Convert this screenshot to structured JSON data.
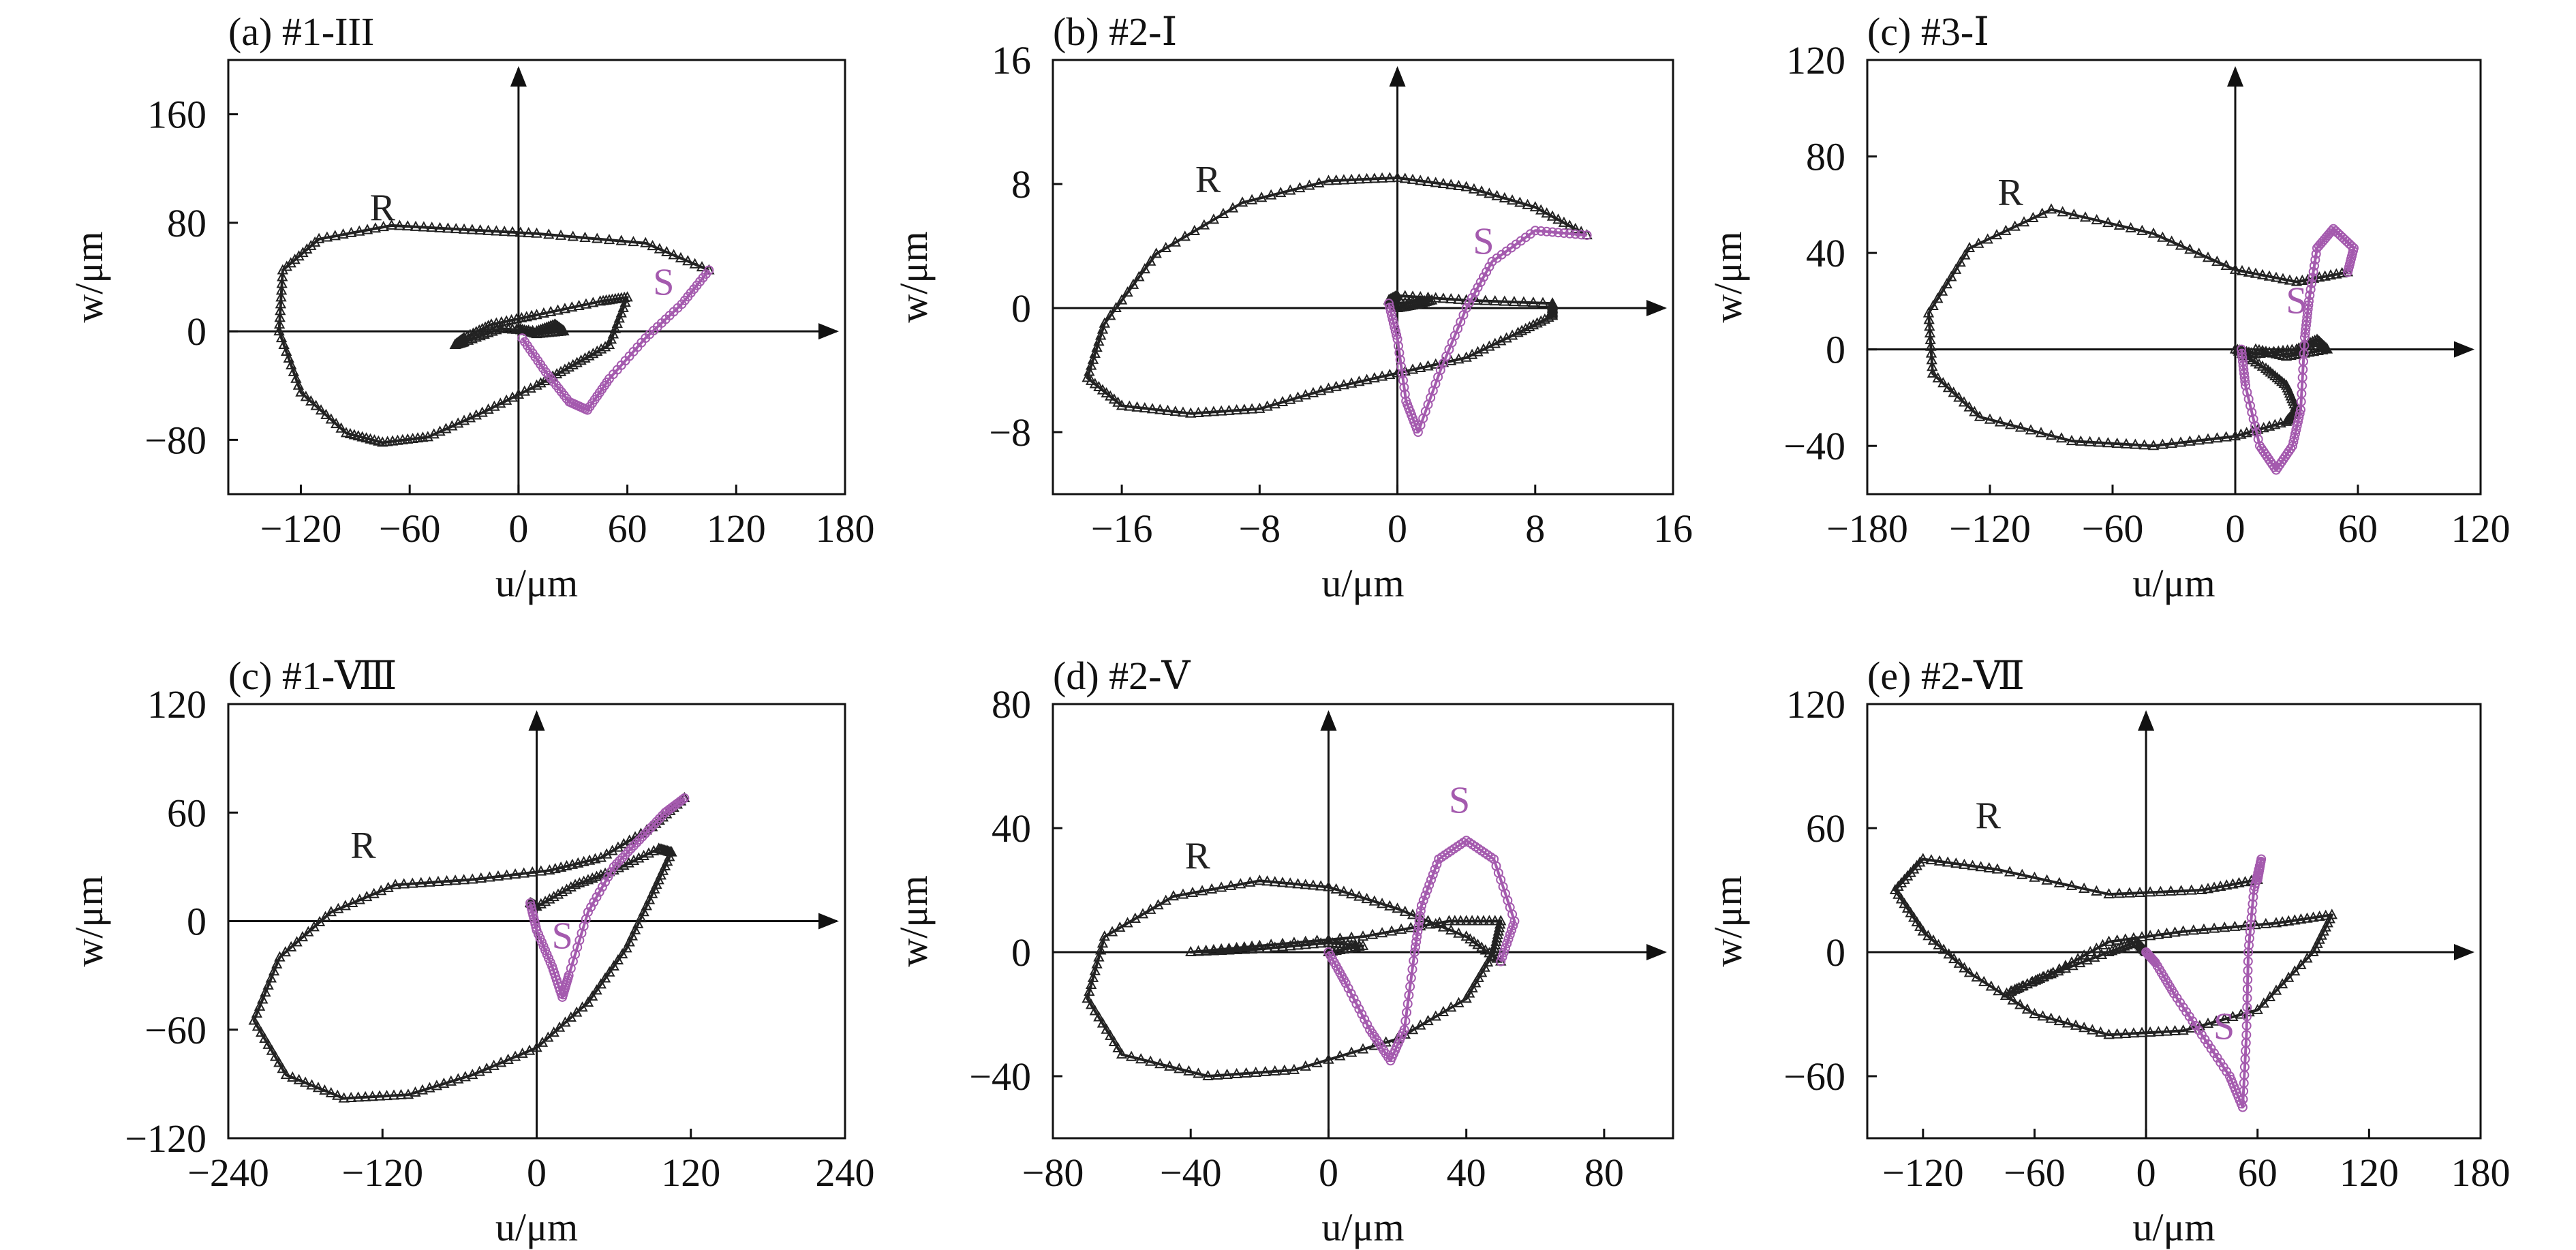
{
  "colors": {
    "R": "#222222",
    "S": "#a45aae",
    "axis": "#111111"
  },
  "chart_data": [
    {
      "type": "line",
      "panel": "(a) #1-III",
      "title": "(a) #1-III",
      "xlabel": "u/μm",
      "ylabel": "w/μm",
      "xlim": [
        -160,
        180
      ],
      "ylim": [
        -120,
        200
      ],
      "xticks": [
        -120,
        -60,
        0,
        60,
        120,
        180
      ],
      "yticks": [
        -80,
        0,
        80,
        160
      ],
      "xtick_labels": [
        "−120",
        "−60",
        "0",
        "60",
        "120",
        "180"
      ],
      "ytick_labels": [
        "−80",
        "0",
        "80",
        "160"
      ],
      "series": [
        {
          "name": "R",
          "label_at": [
            -75,
            82
          ],
          "points": [
            [
              105,
              45
            ],
            [
              70,
              65
            ],
            [
              10,
              72
            ],
            [
              -30,
              75
            ],
            [
              -70,
              78
            ],
            [
              -110,
              68
            ],
            [
              -130,
              45
            ],
            [
              -132,
              0
            ],
            [
              -120,
              -45
            ],
            [
              -95,
              -75
            ],
            [
              -75,
              -82
            ],
            [
              -50,
              -78
            ],
            [
              -20,
              -60
            ],
            [
              10,
              -40
            ],
            [
              30,
              -25
            ],
            [
              50,
              -10
            ],
            [
              60,
              25
            ],
            [
              45,
              22
            ],
            [
              10,
              12
            ],
            [
              -15,
              5
            ],
            [
              -30,
              -5
            ],
            [
              -35,
              -10
            ],
            [
              -30,
              -8
            ],
            [
              -10,
              2
            ],
            [
              10,
              0
            ],
            [
              20,
              5
            ],
            [
              25,
              0
            ],
            [
              10,
              -2
            ],
            [
              0,
              2
            ]
          ]
        },
        {
          "name": "S",
          "label_at": [
            80,
            27
          ],
          "points": [
            [
              105,
              45
            ],
            [
              90,
              20
            ],
            [
              70,
              -5
            ],
            [
              50,
              -35
            ],
            [
              38,
              -58
            ],
            [
              28,
              -52
            ],
            [
              15,
              -30
            ],
            [
              2,
              -5
            ]
          ]
        }
      ]
    },
    {
      "type": "line",
      "panel": "(b) #2-Ⅰ",
      "title": "(b) #2-Ⅰ",
      "xlabel": "u/μm",
      "ylabel": "w/μm",
      "xlim": [
        -20,
        16
      ],
      "ylim": [
        -12,
        16
      ],
      "xticks": [
        -16,
        -8,
        0,
        8,
        16
      ],
      "yticks": [
        -8,
        0,
        8,
        16
      ],
      "xtick_labels": [
        "−16",
        "−8",
        "0",
        "8",
        "16"
      ],
      "ytick_labels": [
        "−8",
        "0",
        "8",
        "16"
      ],
      "series": [
        {
          "name": "R",
          "label_at": [
            -11,
            7.5
          ],
          "points": [
            [
              11,
              4.7
            ],
            [
              8,
              6.5
            ],
            [
              4,
              7.8
            ],
            [
              0,
              8.4
            ],
            [
              -4,
              8.2
            ],
            [
              -9,
              6.8
            ],
            [
              -14,
              3.5
            ],
            [
              -17,
              -1
            ],
            [
              -18,
              -4.5
            ],
            [
              -16,
              -6.3
            ],
            [
              -12,
              -6.8
            ],
            [
              -8,
              -6.5
            ],
            [
              -4,
              -5.2
            ],
            [
              0,
              -4.2
            ],
            [
              4,
              -3.2
            ],
            [
              7,
              -1.6
            ],
            [
              9,
              -0.5
            ],
            [
              9,
              0.3
            ],
            [
              4,
              0.5
            ],
            [
              0,
              0.8
            ],
            [
              -0.5,
              0.5
            ],
            [
              0,
              0
            ],
            [
              1,
              0.2
            ],
            [
              2,
              0.5
            ],
            [
              0,
              0.3
            ]
          ]
        },
        {
          "name": "S",
          "label_at": [
            5,
            3.5
          ],
          "points": [
            [
              11,
              4.7
            ],
            [
              8,
              5
            ],
            [
              5.5,
              3
            ],
            [
              4,
              0
            ],
            [
              2.5,
              -4
            ],
            [
              1.2,
              -8
            ],
            [
              0.5,
              -6
            ],
            [
              0,
              -2
            ],
            [
              -0.5,
              0.3
            ]
          ]
        }
      ]
    },
    {
      "type": "line",
      "panel": "(c) #3-Ⅰ",
      "title": "(c) #3-Ⅰ",
      "xlabel": "u/μm",
      "ylabel": "w/μm",
      "xlim": [
        -180,
        120
      ],
      "ylim": [
        -60,
        120
      ],
      "xticks": [
        -180,
        -120,
        -60,
        0,
        60,
        120
      ],
      "yticks": [
        -40,
        0,
        40,
        80,
        120
      ],
      "xtick_labels": [
        "−180",
        "−120",
        "−60",
        "0",
        "60",
        "120"
      ],
      "ytick_labels": [
        "−40",
        "0",
        "40",
        "80",
        "120"
      ],
      "series": [
        {
          "name": "R",
          "label_at": [
            -110,
            60
          ],
          "points": [
            [
              55,
              32
            ],
            [
              30,
              28
            ],
            [
              0,
              33
            ],
            [
              -40,
              48
            ],
            [
              -90,
              58
            ],
            [
              -130,
              42
            ],
            [
              -150,
              15
            ],
            [
              -148,
              -10
            ],
            [
              -125,
              -28
            ],
            [
              -80,
              -38
            ],
            [
              -40,
              -40
            ],
            [
              0,
              -36
            ],
            [
              25,
              -30
            ],
            [
              30,
              -25
            ],
            [
              25,
              -15
            ],
            [
              15,
              -8
            ],
            [
              0,
              0
            ],
            [
              10,
              -2
            ],
            [
              30,
              0
            ],
            [
              40,
              4
            ],
            [
              45,
              0
            ],
            [
              25,
              -3
            ],
            [
              10,
              0
            ]
          ]
        },
        {
          "name": "S",
          "label_at": [
            30,
            15
          ],
          "points": [
            [
              55,
              32
            ],
            [
              58,
              42
            ],
            [
              48,
              50
            ],
            [
              40,
              42
            ],
            [
              36,
              20
            ],
            [
              34,
              5
            ],
            [
              32,
              -25
            ],
            [
              28,
              -40
            ],
            [
              20,
              -50
            ],
            [
              12,
              -40
            ],
            [
              5,
              -15
            ],
            [
              3,
              0
            ]
          ]
        }
      ]
    },
    {
      "type": "line",
      "panel": "(c) #1-Ⅷ",
      "title": "(c) #1-Ⅷ",
      "xlabel": "u/μm",
      "ylabel": "w/μm",
      "xlim": [
        -240,
        240
      ],
      "ylim": [
        -120,
        120
      ],
      "xticks": [
        -240,
        -120,
        0,
        120,
        240
      ],
      "yticks": [
        -120,
        -60,
        0,
        60,
        120
      ],
      "xtick_labels": [
        "−240",
        "−120",
        "0",
        "120",
        "240"
      ],
      "ytick_labels": [
        "−120",
        "−60",
        "0",
        "60",
        "120"
      ],
      "series": [
        {
          "name": "R",
          "label_at": [
            -135,
            35
          ],
          "points": [
            [
              115,
              68
            ],
            [
              90,
              52
            ],
            [
              50,
              35
            ],
            [
              10,
              28
            ],
            [
              -50,
              23
            ],
            [
              -110,
              20
            ],
            [
              -160,
              5
            ],
            [
              -200,
              -20
            ],
            [
              -220,
              -55
            ],
            [
              -195,
              -85
            ],
            [
              -150,
              -98
            ],
            [
              -100,
              -96
            ],
            [
              -50,
              -85
            ],
            [
              0,
              -70
            ],
            [
              40,
              -45
            ],
            [
              70,
              -15
            ],
            [
              90,
              15
            ],
            [
              105,
              38
            ],
            [
              95,
              40
            ],
            [
              60,
              28
            ],
            [
              30,
              20
            ],
            [
              0,
              8
            ],
            [
              -5,
              10
            ]
          ]
        },
        {
          "name": "S",
          "label_at": [
            20,
            -15
          ],
          "points": [
            [
              115,
              68
            ],
            [
              100,
              60
            ],
            [
              80,
              45
            ],
            [
              60,
              30
            ],
            [
              40,
              5
            ],
            [
              25,
              -30
            ],
            [
              20,
              -42
            ],
            [
              12,
              -25
            ],
            [
              0,
              -5
            ],
            [
              -5,
              10
            ]
          ]
        }
      ]
    },
    {
      "type": "line",
      "panel": "(d) #2-Ⅴ",
      "title": "(d) #2-Ⅴ",
      "xlabel": "u/μm",
      "ylabel": "w/μm",
      "xlim": [
        -80,
        100
      ],
      "ylim": [
        -60,
        80
      ],
      "xticks": [
        -80,
        -40,
        0,
        40,
        80
      ],
      "yticks": [
        -40,
        0,
        40,
        80
      ],
      "xtick_labels": [
        "−80",
        "−40",
        "0",
        "40",
        "80"
      ],
      "ytick_labels": [
        "−40",
        "0",
        "40",
        "80"
      ],
      "series": [
        {
          "name": "R",
          "label_at": [
            -38,
            27
          ],
          "points": [
            [
              50,
              -3
            ],
            [
              40,
              5
            ],
            [
              20,
              14
            ],
            [
              0,
              21
            ],
            [
              -20,
              23
            ],
            [
              -45,
              18
            ],
            [
              -65,
              5
            ],
            [
              -70,
              -15
            ],
            [
              -60,
              -33
            ],
            [
              -35,
              -40
            ],
            [
              -10,
              -38
            ],
            [
              20,
              -28
            ],
            [
              40,
              -15
            ],
            [
              48,
              0
            ],
            [
              50,
              10
            ],
            [
              35,
              10
            ],
            [
              10,
              5
            ],
            [
              -20,
              2
            ],
            [
              -40,
              0
            ],
            [
              -20,
              1
            ],
            [
              0,
              3
            ],
            [
              10,
              2
            ],
            [
              0,
              0
            ]
          ]
        },
        {
          "name": "S",
          "label_at": [
            38,
            45
          ],
          "points": [
            [
              50,
              -3
            ],
            [
              54,
              10
            ],
            [
              48,
              30
            ],
            [
              40,
              36
            ],
            [
              32,
              30
            ],
            [
              27,
              15
            ],
            [
              25,
              0
            ],
            [
              22,
              -25
            ],
            [
              18,
              -35
            ],
            [
              12,
              -25
            ],
            [
              5,
              -10
            ],
            [
              0,
              0
            ]
          ]
        }
      ]
    },
    {
      "type": "line",
      "panel": "(e) #2-Ⅶ",
      "title": "(e) #2-Ⅶ",
      "xlabel": "u/μm",
      "ylabel": "w/μm",
      "xlim": [
        -150,
        180
      ],
      "ylim": [
        -90,
        120
      ],
      "xticks": [
        -120,
        -60,
        0,
        60,
        120,
        180
      ],
      "yticks": [
        -60,
        0,
        60,
        120
      ],
      "xtick_labels": [
        "−120",
        "−60",
        "0",
        "60",
        "120",
        "180"
      ],
      "ytick_labels": [
        "−60",
        "0",
        "60",
        "120"
      ],
      "series": [
        {
          "name": "R",
          "label_at": [
            -85,
            60
          ],
          "points": [
            [
              60,
              35
            ],
            [
              30,
              30
            ],
            [
              -20,
              28
            ],
            [
              -80,
              40
            ],
            [
              -120,
              45
            ],
            [
              -135,
              30
            ],
            [
              -120,
              10
            ],
            [
              -95,
              -10
            ],
            [
              -60,
              -30
            ],
            [
              -20,
              -40
            ],
            [
              20,
              -38
            ],
            [
              60,
              -28
            ],
            [
              90,
              0
            ],
            [
              100,
              18
            ],
            [
              70,
              14
            ],
            [
              20,
              10
            ],
            [
              -20,
              5
            ],
            [
              -50,
              -10
            ],
            [
              -75,
              -20
            ],
            [
              -55,
              -12
            ],
            [
              -20,
              0
            ],
            [
              -5,
              5
            ],
            [
              0,
              0
            ]
          ]
        },
        {
          "name": "S",
          "label_at": [
            42,
            -42
          ],
          "points": [
            [
              60,
              35
            ],
            [
              62,
              45
            ],
            [
              58,
              30
            ],
            [
              55,
              0
            ],
            [
              54,
              -40
            ],
            [
              52,
              -75
            ],
            [
              45,
              -60
            ],
            [
              30,
              -40
            ],
            [
              15,
              -20
            ],
            [
              5,
              -5
            ],
            [
              0,
              0
            ]
          ]
        }
      ]
    }
  ]
}
